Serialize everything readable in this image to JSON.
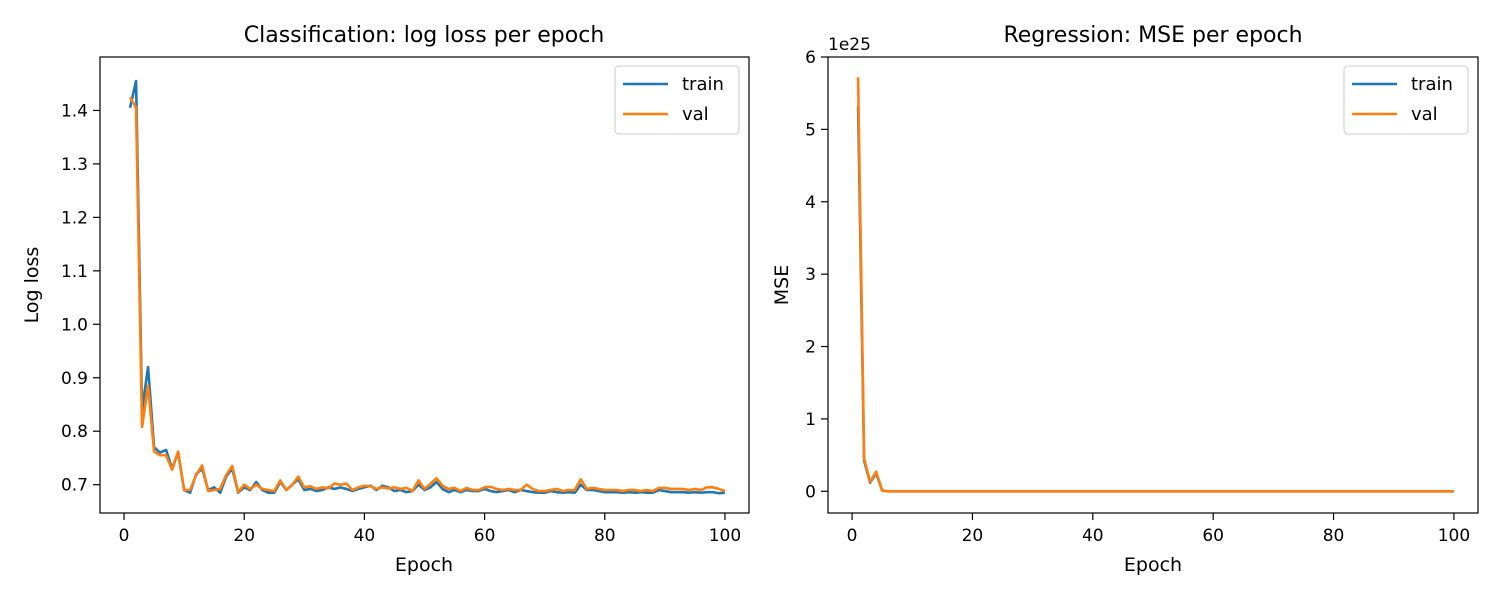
{
  "colors": {
    "train": "#1f77b4",
    "val": "#ff7f0e"
  },
  "chart_data": [
    {
      "type": "line",
      "title": "Classification: log loss per epoch",
      "xlabel": "Epoch",
      "ylabel": "Log loss",
      "xlim": [
        -4,
        104
      ],
      "ylim": [
        0.647,
        1.5
      ],
      "xticks": [
        "0",
        "20",
        "40",
        "60",
        "80",
        "100"
      ],
      "xtick_values": [
        0,
        20,
        40,
        60,
        80,
        100
      ],
      "yticks": [
        "0.7",
        "0.8",
        "0.9",
        "1.0",
        "1.1",
        "1.2",
        "1.3",
        "1.4"
      ],
      "ytick_values": [
        0.7,
        0.8,
        0.9,
        1.0,
        1.1,
        1.2,
        1.3,
        1.4
      ],
      "grid": false,
      "legend": "top-right",
      "x": [
        1,
        2,
        3,
        4,
        5,
        6,
        7,
        8,
        9,
        10,
        11,
        12,
        13,
        14,
        15,
        16,
        17,
        18,
        19,
        20,
        21,
        22,
        23,
        24,
        25,
        26,
        27,
        28,
        29,
        30,
        31,
        32,
        33,
        34,
        35,
        36,
        37,
        38,
        39,
        40,
        41,
        42,
        43,
        44,
        45,
        46,
        47,
        48,
        49,
        50,
        51,
        52,
        53,
        54,
        55,
        56,
        57,
        58,
        59,
        60,
        61,
        62,
        63,
        64,
        65,
        66,
        67,
        68,
        69,
        70,
        71,
        72,
        73,
        74,
        75,
        76,
        77,
        78,
        79,
        80,
        81,
        82,
        83,
        84,
        85,
        86,
        87,
        88,
        89,
        90,
        91,
        92,
        93,
        94,
        95,
        96,
        97,
        98,
        99,
        100
      ],
      "series": [
        {
          "name": "train",
          "color_key": "train",
          "values": [
            1.405,
            1.455,
            0.84,
            0.92,
            0.77,
            0.76,
            0.765,
            0.73,
            0.76,
            0.69,
            0.685,
            0.72,
            0.73,
            0.69,
            0.695,
            0.685,
            0.715,
            0.73,
            0.685,
            0.695,
            0.69,
            0.705,
            0.69,
            0.685,
            0.685,
            0.705,
            0.69,
            0.7,
            0.71,
            0.69,
            0.692,
            0.688,
            0.69,
            0.695,
            0.692,
            0.695,
            0.692,
            0.688,
            0.692,
            0.695,
            0.698,
            0.69,
            0.698,
            0.695,
            0.688,
            0.69,
            0.686,
            0.688,
            0.7,
            0.69,
            0.695,
            0.705,
            0.692,
            0.686,
            0.69,
            0.686,
            0.69,
            0.688,
            0.688,
            0.692,
            0.688,
            0.686,
            0.688,
            0.69,
            0.686,
            0.69,
            0.688,
            0.686,
            0.685,
            0.685,
            0.688,
            0.686,
            0.685,
            0.686,
            0.685,
            0.7,
            0.69,
            0.69,
            0.688,
            0.686,
            0.686,
            0.686,
            0.685,
            0.686,
            0.685,
            0.686,
            0.685,
            0.685,
            0.69,
            0.688,
            0.686,
            0.686,
            0.686,
            0.685,
            0.686,
            0.685,
            0.686,
            0.686,
            0.684,
            0.685
          ]
        },
        {
          "name": "val",
          "color_key": "val",
          "values": [
            1.425,
            1.405,
            0.808,
            0.885,
            0.762,
            0.755,
            0.755,
            0.728,
            0.762,
            0.69,
            0.69,
            0.718,
            0.736,
            0.688,
            0.69,
            0.692,
            0.718,
            0.735,
            0.686,
            0.7,
            0.692,
            0.7,
            0.692,
            0.69,
            0.688,
            0.708,
            0.69,
            0.7,
            0.715,
            0.695,
            0.697,
            0.692,
            0.695,
            0.693,
            0.702,
            0.7,
            0.702,
            0.69,
            0.695,
            0.698,
            0.697,
            0.692,
            0.695,
            0.693,
            0.695,
            0.692,
            0.694,
            0.688,
            0.708,
            0.692,
            0.702,
            0.712,
            0.698,
            0.692,
            0.694,
            0.688,
            0.694,
            0.69,
            0.69,
            0.695,
            0.696,
            0.692,
            0.69,
            0.692,
            0.69,
            0.69,
            0.7,
            0.692,
            0.688,
            0.688,
            0.69,
            0.692,
            0.688,
            0.69,
            0.69,
            0.71,
            0.692,
            0.694,
            0.692,
            0.69,
            0.69,
            0.69,
            0.688,
            0.69,
            0.69,
            0.688,
            0.69,
            0.688,
            0.694,
            0.694,
            0.692,
            0.692,
            0.692,
            0.69,
            0.692,
            0.69,
            0.695,
            0.695,
            0.692,
            0.688
          ]
        }
      ]
    },
    {
      "type": "line",
      "title": "Regression: MSE per epoch",
      "xlabel": "Epoch",
      "ylabel": "MSE",
      "offset_label": "1e25",
      "xlim": [
        -4,
        104
      ],
      "ylim": [
        -0.3,
        6.0
      ],
      "xticks": [
        "0",
        "20",
        "40",
        "60",
        "80",
        "100"
      ],
      "xtick_values": [
        0,
        20,
        40,
        60,
        80,
        100
      ],
      "yticks": [
        "0",
        "1",
        "2",
        "3",
        "4",
        "5",
        "6"
      ],
      "ytick_values": [
        0,
        1,
        2,
        3,
        4,
        5,
        6
      ],
      "grid": false,
      "legend": "top-right",
      "x": [
        1,
        2,
        3,
        4,
        5,
        6,
        7,
        8,
        9,
        10,
        11,
        12,
        13,
        14,
        15,
        16,
        17,
        18,
        19,
        20,
        21,
        22,
        23,
        24,
        25,
        26,
        27,
        28,
        29,
        30,
        31,
        32,
        33,
        34,
        35,
        36,
        37,
        38,
        39,
        40,
        41,
        42,
        43,
        44,
        45,
        46,
        47,
        48,
        49,
        50,
        51,
        52,
        53,
        54,
        55,
        56,
        57,
        58,
        59,
        60,
        61,
        62,
        63,
        64,
        65,
        66,
        67,
        68,
        69,
        70,
        71,
        72,
        73,
        74,
        75,
        76,
        77,
        78,
        79,
        80,
        81,
        82,
        83,
        84,
        85,
        86,
        87,
        88,
        89,
        90,
        91,
        92,
        93,
        94,
        95,
        96,
        97,
        98,
        99,
        100
      ],
      "series": [
        {
          "name": "train",
          "color_key": "train",
          "values": [
            5.32,
            0.42,
            0.12,
            0.25,
            0.01,
            0,
            0,
            0,
            0,
            0,
            0,
            0,
            0,
            0,
            0,
            0,
            0,
            0,
            0,
            0,
            0,
            0,
            0,
            0,
            0,
            0,
            0,
            0,
            0,
            0,
            0,
            0,
            0,
            0,
            0,
            0,
            0,
            0,
            0,
            0,
            0,
            0,
            0,
            0,
            0,
            0,
            0,
            0,
            0,
            0,
            0,
            0,
            0,
            0,
            0,
            0,
            0,
            0,
            0,
            0,
            0,
            0,
            0,
            0,
            0,
            0,
            0,
            0,
            0,
            0,
            0,
            0,
            0,
            0,
            0,
            0,
            0,
            0,
            0,
            0,
            0,
            0,
            0,
            0,
            0,
            0,
            0,
            0,
            0,
            0,
            0,
            0,
            0,
            0,
            0,
            0,
            0,
            0,
            0,
            0
          ]
        },
        {
          "name": "val",
          "color_key": "val",
          "values": [
            5.72,
            0.45,
            0.13,
            0.27,
            0.01,
            0,
            0,
            0,
            0,
            0,
            0,
            0,
            0,
            0,
            0,
            0,
            0,
            0,
            0,
            0,
            0,
            0,
            0,
            0,
            0,
            0,
            0,
            0,
            0,
            0,
            0,
            0,
            0,
            0,
            0,
            0,
            0,
            0,
            0,
            0,
            0,
            0,
            0,
            0,
            0,
            0,
            0,
            0,
            0,
            0,
            0,
            0,
            0,
            0,
            0,
            0,
            0,
            0,
            0,
            0,
            0,
            0,
            0,
            0,
            0,
            0,
            0,
            0,
            0,
            0,
            0,
            0,
            0,
            0,
            0,
            0,
            0,
            0,
            0,
            0,
            0,
            0,
            0,
            0,
            0,
            0,
            0,
            0,
            0,
            0,
            0,
            0,
            0,
            0,
            0,
            0,
            0,
            0,
            0,
            0
          ]
        }
      ]
    }
  ]
}
